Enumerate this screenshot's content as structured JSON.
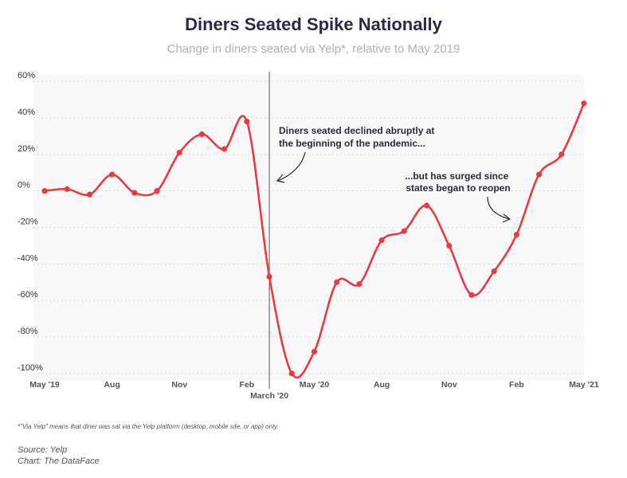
{
  "title": "Diners Seated Spike Nationally",
  "subtitle": "Change in diners seated via Yelp*, relative to May 2019",
  "footnote": "*\"Via Yelp\" means that diner was sat via the Yelp platform (desktop, mobile site, or app) only.",
  "source": "Source: Yelp",
  "credit": "Chart: The DataFace",
  "colors": {
    "line": "#ea3a3f",
    "plot_bg": "#f8f8f8",
    "grid": "#dcdcdc",
    "marker_line": "#555555",
    "text": "#2b2b3a"
  },
  "chart_data": {
    "type": "line",
    "y_ticks": [
      {
        "value": 60,
        "label": "60%"
      },
      {
        "value": 40,
        "label": "40%"
      },
      {
        "value": 20,
        "label": "20%"
      },
      {
        "value": 0,
        "label": "0%"
      },
      {
        "value": -20,
        "label": "-20%"
      },
      {
        "value": -40,
        "label": "-40%"
      },
      {
        "value": -60,
        "label": "-60%"
      },
      {
        "value": -80,
        "label": "-80%"
      },
      {
        "value": -100,
        "label": "-100%"
      }
    ],
    "ylim": [
      -104,
      64
    ],
    "x_ticks": [
      {
        "index": 0,
        "label": "May '19"
      },
      {
        "index": 3,
        "label": "Aug"
      },
      {
        "index": 6,
        "label": "Nov"
      },
      {
        "index": 9,
        "label": "Feb"
      },
      {
        "index": 12,
        "label": "May '20"
      },
      {
        "index": 15,
        "label": "Aug"
      },
      {
        "index": 18,
        "label": "Nov"
      },
      {
        "index": 21,
        "label": "Feb"
      },
      {
        "index": 24,
        "label": "May '21"
      }
    ],
    "marker": {
      "index": 10,
      "label": "March '20"
    },
    "x": [
      "May 2019",
      "Jun 2019",
      "Jul 2019",
      "Aug 2019",
      "Sep 2019",
      "Oct 2019",
      "Nov 2019",
      "Dec 2019",
      "Jan 2020",
      "Feb 2020",
      "Mar 2020",
      "Apr 2020",
      "May 2020",
      "Jun 2020",
      "Jul 2020",
      "Aug 2020",
      "Sep 2020",
      "Oct 2020",
      "Nov 2020",
      "Dec 2020",
      "Jan 2021",
      "Feb 2021",
      "Mar 2021",
      "Apr 2021",
      "May 2021"
    ],
    "series": [
      {
        "values": [
          0,
          1,
          -2,
          9,
          -1,
          0,
          21,
          31,
          23,
          38,
          -47,
          -100,
          -88,
          -50,
          -51,
          -27,
          -22,
          -8,
          -30,
          -57,
          -44,
          -24,
          9,
          20,
          48
        ]
      }
    ],
    "annotations": [
      {
        "lines": [
          "Diners seated declined abruptly at",
          "the beginning of the pandemic..."
        ]
      },
      {
        "lines": [
          "...but has surged since",
          "states began to reopen"
        ]
      }
    ]
  }
}
